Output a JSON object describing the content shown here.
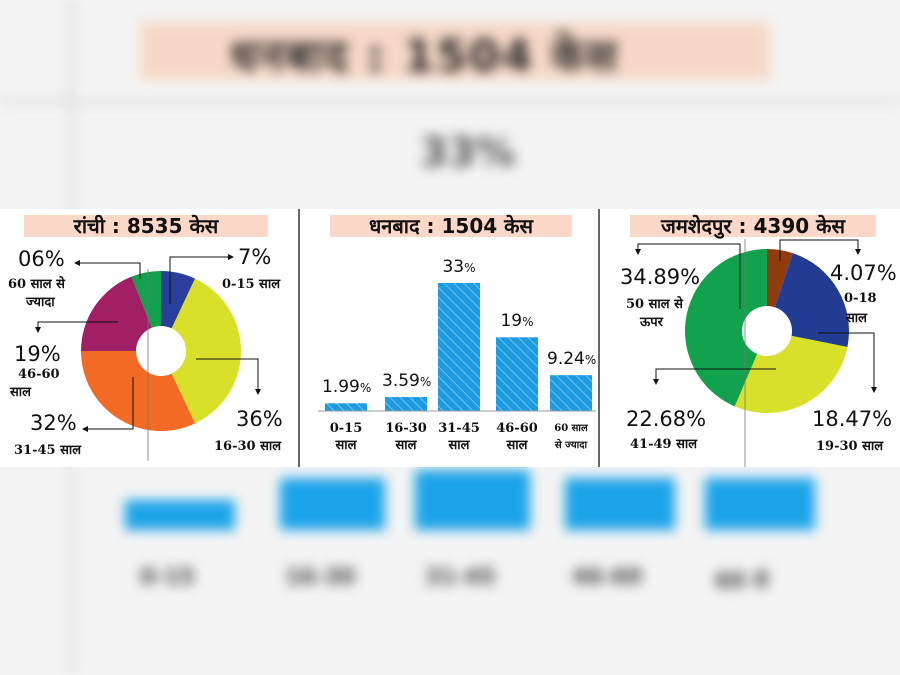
{
  "background": {
    "title": "धनबाद : 1504 केस",
    "value": "33%",
    "labels": [
      "0-15",
      "16-30",
      "31-45",
      "46-60",
      "60 से"
    ]
  },
  "colors": {
    "title_bg": "#fbd8c8",
    "bar": "#1e9be0",
    "pie_ranchi": [
      "#2a3f9a",
      "#d8e02a",
      "#f36a24",
      "#a11f65",
      "#12a24d"
    ],
    "pie_jsr": [
      "#8e3b0e",
      "#243b93",
      "#d8e02a",
      "#12a24d"
    ]
  },
  "chart_data": [
    {
      "type": "pie",
      "title": "रांची : 8535 केस",
      "slices": [
        {
          "label": "0-15 साल",
          "value_text": "7%",
          "value": 7
        },
        {
          "label": "16-30 साल",
          "value_text": "36%",
          "value": 36
        },
        {
          "label": "31-45 साल",
          "value_text": "32%",
          "value": 32
        },
        {
          "label": "46-60 साल",
          "value_text": "19%",
          "value": 19
        },
        {
          "label": "60 साल से ज्यादा",
          "value_text": "06%",
          "value": 6
        }
      ]
    },
    {
      "type": "bar",
      "title": "धनबाद : 1504 केस",
      "categories": [
        "0-15 साल",
        "16-30 साल",
        "31-45 साल",
        "46-60 साल",
        "60 साल से ज्यादा"
      ],
      "values": [
        1.99,
        3.59,
        33,
        19,
        9.24
      ],
      "value_labels": [
        {
          "num": "1.99",
          "unit": "%"
        },
        {
          "num": "3.59",
          "unit": "%"
        },
        {
          "num": "33",
          "unit": "%"
        },
        {
          "num": "19",
          "unit": "%"
        },
        {
          "num": "9.24",
          "unit": "%"
        }
      ],
      "category_lines": [
        [
          "0-15",
          "साल"
        ],
        [
          "16-30",
          "साल"
        ],
        [
          "31-45",
          "साल"
        ],
        [
          "46-60",
          "साल"
        ],
        [
          "60 साल",
          "से ज्यादा"
        ]
      ]
    },
    {
      "type": "pie",
      "title": "जमशेदपुर : 4390 केस",
      "slices": [
        {
          "label": "0-18 साल",
          "value_text": "4.07%",
          "value": 4.07
        },
        {
          "label": "19-30 साल",
          "value_text": "18.47%",
          "value": 18.47
        },
        {
          "label": "41-49 साल",
          "value_text": "22.68%",
          "value": 22.68
        },
        {
          "label": "50 साल से ऊपर",
          "value_text": "34.89%",
          "value": 34.89
        }
      ]
    }
  ],
  "text": {
    "r0_pct": "7%",
    "r0_l1": "0-15 साल",
    "r1_pct": "36%",
    "r1_l1": "16-30 साल",
    "r2_pct": "32%",
    "r2_l1": "31-45 साल",
    "r3_pct": "19%",
    "r3_l1": "46-60",
    "r3_l2": "साल",
    "r4_pct": "06%",
    "r4_l1": "60 साल से",
    "r4_l2": "ज्यादा",
    "j0_pct": "4.07%",
    "j0_l1": "0-18",
    "j0_l2": "साल",
    "j1_pct": "18.47%",
    "j1_l1": "19-30 साल",
    "j2_pct": "22.68%",
    "j2_l1": "41-49 साल",
    "j3_pct": "34.89%",
    "j3_l1": "50 साल से",
    "j3_l2": "ऊपर"
  }
}
